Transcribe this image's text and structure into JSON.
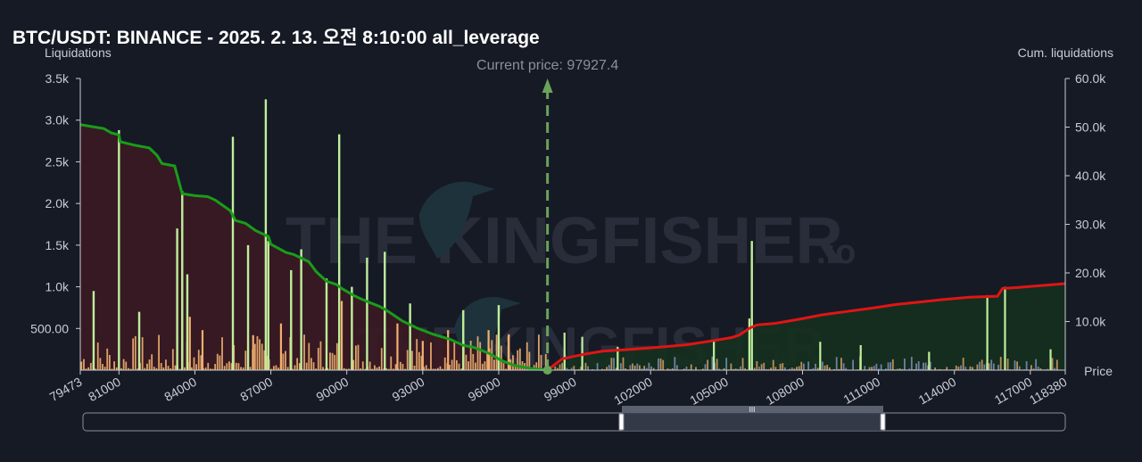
{
  "header": {
    "title": "BTC/USDT: BINANCE - 2025. 2. 13. 오전 8:10:00 all_leverage"
  },
  "watermark": {
    "brand": "THE KINGFISHER",
    "suffix": ".io",
    "bird_icon": "kingfisher-bird-icon"
  },
  "colors": {
    "background": "#161a25",
    "cum_long_line": "#1a9c1a",
    "cum_long_fill": "#3a1a22",
    "cum_short_line": "#e01515",
    "cum_short_fill": "#14301e",
    "tall_bar": "#bfee9c",
    "small_bar": "#f0b070",
    "mid_bar": "#8e9ecf",
    "current_price_marker": "#6aa35a"
  },
  "chart_data": {
    "type": "bar",
    "left_axis_label": "Liquidations",
    "right_axis_label": "Cum. liquidations",
    "x_axis_label": "Price",
    "x_range": [
      79473,
      118380
    ],
    "y_left_range": [
      0,
      3500
    ],
    "y_right_range": [
      0,
      60000
    ],
    "x_ticks": [
      "79473",
      "81000",
      "84000",
      "87000",
      "90000",
      "93000",
      "96000",
      "99000",
      "102000",
      "105000",
      "108000",
      "111000",
      "114000",
      "117000",
      "118380"
    ],
    "y_left_ticks": [
      "500.00",
      "1.0k",
      "1.5k",
      "2.0k",
      "2.5k",
      "3.0k",
      "3.5k"
    ],
    "y_right_ticks": [
      "10.0k",
      "20.0k",
      "30.0k",
      "40.0k",
      "50.0k",
      "60.0k"
    ],
    "current_price": 97927.4,
    "current_price_label": "Current price: 97927.4",
    "major_bars": {
      "x": [
        80000,
        81000,
        81800,
        83300,
        83500,
        83700,
        85500,
        86100,
        86800,
        86900,
        87800,
        88200,
        89200,
        89700,
        90200,
        90800,
        91500,
        92500,
        94600,
        96000,
        106000
      ],
      "y": [
        950,
        2880,
        700,
        1700,
        2150,
        1150,
        2800,
        1500,
        3250,
        1550,
        1200,
        1450,
        1100,
        2830,
        1000,
        1350,
        1420,
        800,
        720,
        780,
        1550
      ]
    },
    "secondary_bars": {
      "x": [
        83800,
        84300,
        86300,
        87400,
        89800,
        92000,
        93000,
        94000,
        95600,
        96400,
        98600,
        99300,
        100700,
        104500,
        105900,
        108700,
        110300,
        113000,
        115300,
        116000,
        117800
      ],
      "y": [
        640,
        480,
        420,
        560,
        830,
        560,
        350,
        480,
        480,
        430,
        450,
        400,
        280,
        360,
        620,
        340,
        300,
        220,
        900,
        1000,
        250
      ]
    },
    "cum_long": {
      "x": [
        79473,
        80400,
        80700,
        81000,
        81050,
        81600,
        82200,
        82500,
        82700,
        83200,
        83450,
        83500,
        84000,
        84500,
        84800,
        85400,
        85600,
        86000,
        86400,
        86900,
        87000,
        87600,
        87900,
        88500,
        88800,
        89200,
        89600,
        89800,
        90300,
        90500,
        91000,
        91300,
        91600,
        92200,
        92800,
        93400,
        94100,
        94600,
        95000,
        95600,
        96100,
        96600,
        97200,
        97927
      ],
      "y": [
        50500,
        49700,
        48800,
        48400,
        47000,
        46300,
        45700,
        44200,
        42500,
        42000,
        37200,
        36300,
        35900,
        35700,
        35000,
        32800,
        30800,
        30200,
        28700,
        27500,
        25900,
        24200,
        23800,
        22300,
        20200,
        18300,
        17600,
        16800,
        15300,
        14800,
        13700,
        13100,
        12200,
        10100,
        8600,
        7400,
        6300,
        5100,
        4700,
        3500,
        2000,
        1000,
        400,
        0
      ]
    },
    "cum_short": {
      "x": [
        97927,
        98500,
        99300,
        100100,
        101000,
        102300,
        103400,
        104400,
        105200,
        105500,
        105900,
        106200,
        106900,
        107900,
        108800,
        109800,
        110800,
        111700,
        112600,
        113500,
        114600,
        115700,
        115900,
        116500,
        118380
      ],
      "y": [
        0,
        2300,
        3200,
        3900,
        4200,
        4700,
        5200,
        6000,
        6700,
        7200,
        8600,
        9300,
        9600,
        10500,
        11400,
        12100,
        12800,
        13500,
        14000,
        14500,
        15000,
        15200,
        16800,
        17000,
        17800
      ]
    },
    "grid": false,
    "legend": "none"
  },
  "range_slider": {
    "handle_label": "III"
  }
}
